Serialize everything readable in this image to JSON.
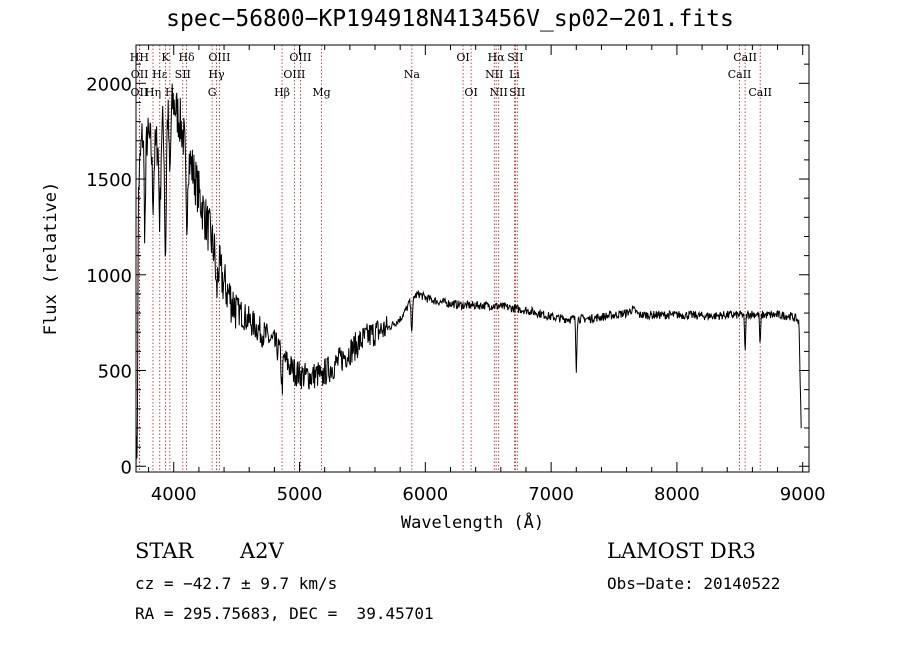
{
  "title": "spec−56800−KP194918N413456V_sp02−201.fits",
  "info": {
    "class": "STAR",
    "subclass": "A2V",
    "survey": "LAMOST DR3",
    "cz": "cz = −42.7 ± 9.7 km/s",
    "obs_date": "Obs−Date: 20140522",
    "radec": "RA = 295.75683, DEC =  39.45701"
  },
  "colors": {
    "line_marker": "#b22222",
    "spectrum": "#000000"
  },
  "chart_data": {
    "type": "line",
    "xlabel": "Wavelength (Å)",
    "ylabel": "Flux (relative)",
    "xlim": [
      3700,
      9050
    ],
    "ylim": [
      -30,
      2200
    ],
    "xticks": [
      4000,
      5000,
      6000,
      7000,
      8000,
      9000
    ],
    "yticks": [
      0,
      500,
      1000,
      1500,
      2000
    ],
    "lines": [
      {
        "label": "HH",
        "x": 3727,
        "row": 0
      },
      {
        "label": "OII",
        "x": 3727,
        "row": 2
      },
      {
        "label": "OII",
        "x": 3729,
        "row": 1
      },
      {
        "label": "Hη",
        "x": 3835,
        "row": 2
      },
      {
        "label": "K",
        "x": 3934,
        "row": 0
      },
      {
        "label": "Hε",
        "x": 3889,
        "row": 1
      },
      {
        "label": "H",
        "x": 3969,
        "row": 2
      },
      {
        "label": "Hδ",
        "x": 4102,
        "row": 0
      },
      {
        "label": "SII",
        "x": 4072,
        "row": 1
      },
      {
        "label": "OIII",
        "x": 4363,
        "row": 0
      },
      {
        "label": "Hγ",
        "x": 4340,
        "row": 1
      },
      {
        "label": "G",
        "x": 4305,
        "row": 2
      },
      {
        "label": "Hβ",
        "x": 4861,
        "row": 2
      },
      {
        "label": "OIII",
        "x": 5007,
        "row": 0
      },
      {
        "label": "OIII",
        "x": 4959,
        "row": 1
      },
      {
        "label": "Mg",
        "x": 5175,
        "row": 2
      },
      {
        "label": "Na",
        "x": 5893,
        "row": 1
      },
      {
        "label": "OI",
        "x": 6300,
        "row": 0
      },
      {
        "label": "OI",
        "x": 6364,
        "row": 2
      },
      {
        "label": "Hα",
        "x": 6563,
        "row": 0
      },
      {
        "label": "NII",
        "x": 6548,
        "row": 1
      },
      {
        "label": "NII",
        "x": 6583,
        "row": 2
      },
      {
        "label": "SII",
        "x": 6716,
        "row": 0
      },
      {
        "label": "Li",
        "x": 6708,
        "row": 1
      },
      {
        "label": "SII",
        "x": 6731,
        "row": 2
      },
      {
        "label": "CaII",
        "x": 8542,
        "row": 0
      },
      {
        "label": "CaII",
        "x": 8498,
        "row": 1
      },
      {
        "label": "CaII",
        "x": 8662,
        "row": 2
      }
    ],
    "spectrum_anchors": [
      [
        3700,
        0
      ],
      [
        3710,
        120
      ],
      [
        3720,
        1450
      ],
      [
        3740,
        1650
      ],
      [
        3760,
        1800
      ],
      [
        3800,
        1700
      ],
      [
        3850,
        1650
      ],
      [
        3900,
        1750
      ],
      [
        3950,
        1850
      ],
      [
        4000,
        1900
      ],
      [
        4050,
        1800
      ],
      [
        4100,
        1650
      ],
      [
        4150,
        1550
      ],
      [
        4200,
        1420
      ],
      [
        4250,
        1300
      ],
      [
        4300,
        1180
      ],
      [
        4350,
        1060
      ],
      [
        4400,
        950
      ],
      [
        4450,
        880
      ],
      [
        4500,
        820
      ],
      [
        4600,
        760
      ],
      [
        4700,
        700
      ],
      [
        4800,
        640
      ],
      [
        4900,
        540
      ],
      [
        4950,
        500
      ],
      [
        5000,
        480
      ],
      [
        5050,
        470
      ],
      [
        5100,
        470
      ],
      [
        5200,
        490
      ],
      [
        5300,
        540
      ],
      [
        5400,
        600
      ],
      [
        5500,
        660
      ],
      [
        5600,
        700
      ],
      [
        5700,
        720
      ],
      [
        5800,
        770
      ],
      [
        5850,
        820
      ],
      [
        5890,
        880
      ],
      [
        5950,
        900
      ],
      [
        6000,
        880
      ],
      [
        6100,
        860
      ],
      [
        6200,
        850
      ],
      [
        6300,
        840
      ],
      [
        6400,
        840
      ],
      [
        6500,
        840
      ],
      [
        6600,
        835
      ],
      [
        6700,
        825
      ],
      [
        6800,
        815
      ],
      [
        6900,
        800
      ],
      [
        7000,
        780
      ],
      [
        7100,
        770
      ],
      [
        7200,
        770
      ],
      [
        7300,
        770
      ],
      [
        7400,
        780
      ],
      [
        7500,
        790
      ],
      [
        7600,
        800
      ],
      [
        7650,
        820
      ],
      [
        7700,
        790
      ],
      [
        7800,
        790
      ],
      [
        7900,
        790
      ],
      [
        8000,
        790
      ],
      [
        8100,
        790
      ],
      [
        8200,
        785
      ],
      [
        8300,
        785
      ],
      [
        8400,
        790
      ],
      [
        8500,
        790
      ],
      [
        8600,
        795
      ],
      [
        8700,
        790
      ],
      [
        8800,
        790
      ],
      [
        8900,
        785
      ],
      [
        8950,
        770
      ],
      [
        8970,
        750
      ],
      [
        8990,
        150
      ]
    ],
    "spectrum_dips": [
      [
        3770,
        1250
      ],
      [
        3835,
        1400
      ],
      [
        3889,
        1300
      ],
      [
        3934,
        1100
      ],
      [
        3969,
        1500
      ],
      [
        4102,
        1250
      ],
      [
        4340,
        900
      ],
      [
        4861,
        420
      ],
      [
        5175,
        430
      ],
      [
        5893,
        720
      ],
      [
        7200,
        510
      ],
      [
        8542,
        600
      ],
      [
        8662,
        630
      ]
    ]
  }
}
